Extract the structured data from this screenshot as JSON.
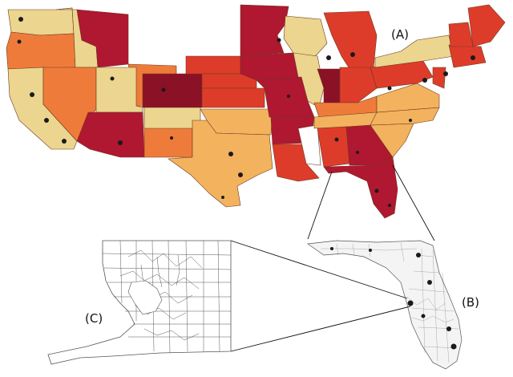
{
  "labels": {
    "panel_a": "(A)",
    "panel_b": "(B)",
    "panel_c": "(C)"
  },
  "colors": {
    "lightest": "#ecd58f",
    "light": "#f3b25e",
    "mid": "#ef7b3b",
    "dark": "#de3c2a",
    "darkest": "#b01730",
    "maroon": "#8b1126",
    "tract_lines": "#333333",
    "zoom_lines": "#111111"
  },
  "legend_note": ""
}
